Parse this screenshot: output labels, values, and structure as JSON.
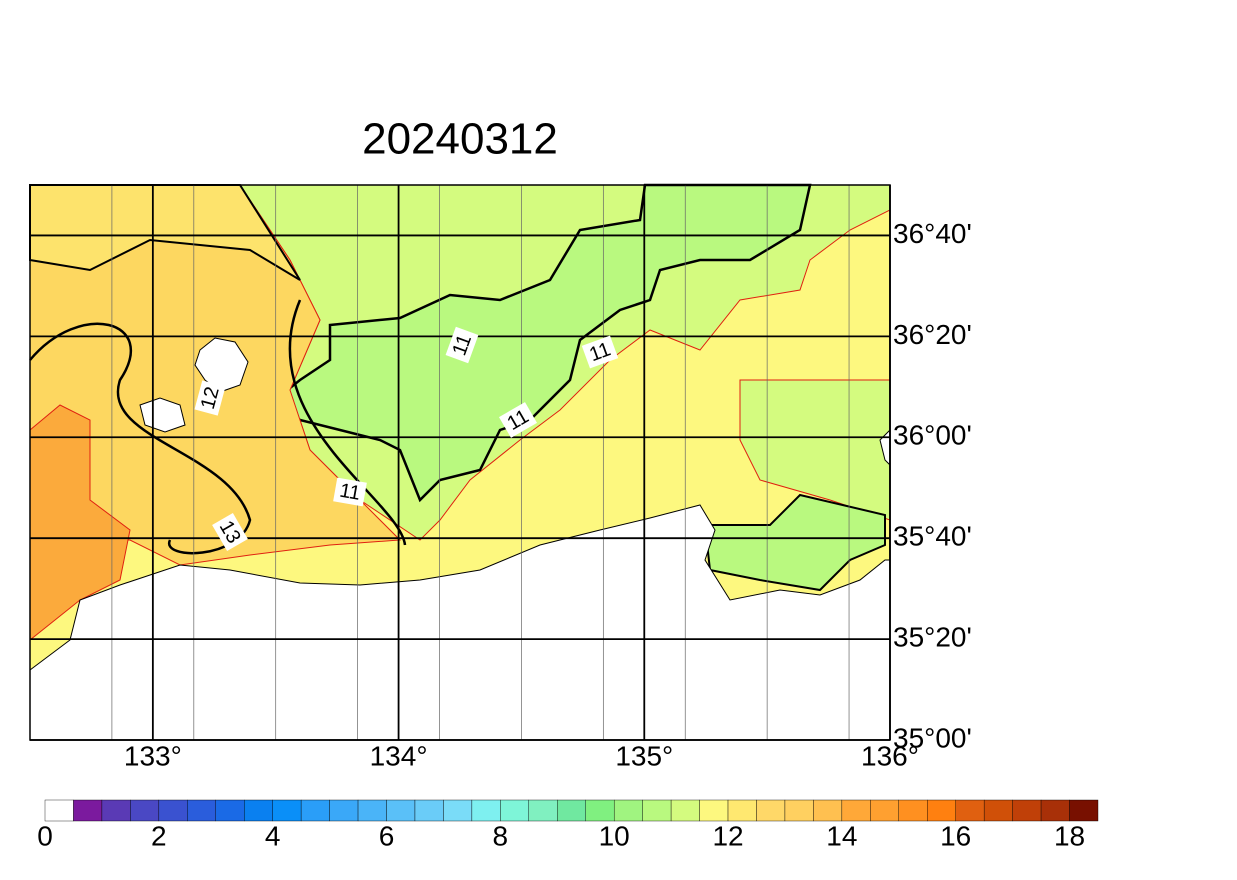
{
  "title": "20240312",
  "map": {
    "lon_range": [
      132.5,
      136
    ],
    "lat_range": [
      35,
      36.8333
    ],
    "lon_ticks": [
      {
        "value": 133,
        "label": "133°"
      },
      {
        "value": 134,
        "label": "134°"
      },
      {
        "value": 135,
        "label": "135°"
      },
      {
        "value": 136,
        "label": "136°"
      }
    ],
    "lat_ticks": [
      {
        "value": 35,
        "label": "35°00'"
      },
      {
        "value": 35.3333,
        "label": "35°20'"
      },
      {
        "value": 35.6667,
        "label": "35°40'"
      },
      {
        "value": 36,
        "label": "36°00'"
      },
      {
        "value": 36.3333,
        "label": "36°20'"
      },
      {
        "value": 36.6667,
        "label": "36°40'"
      }
    ],
    "contour_labels": [
      11,
      11,
      11,
      11,
      12,
      13
    ]
  },
  "colorbar": {
    "clim": [
      0,
      18.5
    ],
    "step": 0.5,
    "ticks": [
      0,
      2,
      4,
      6,
      8,
      10,
      12,
      14,
      16,
      18
    ],
    "colors": [
      "#ffffff",
      "#7b1a9e",
      "#5a3ab5",
      "#4a48c4",
      "#3a52d0",
      "#2a5ddc",
      "#1a6ae6",
      "#0a80f0",
      "#0a8ff8",
      "#2a9ef8",
      "#3aa8f8",
      "#4ab4f8",
      "#5ac0f8",
      "#6accf8",
      "#7adcf8",
      "#7ef0f0",
      "#7ef5d8",
      "#80f0c0",
      "#70e8a0",
      "#80f080",
      "#a0f480",
      "#b9f97f",
      "#d4fb7f",
      "#fdf87f",
      "#ffe870",
      "#ffd868",
      "#ffd060",
      "#ffc050",
      "#ffa838",
      "#ffa030",
      "#ff9020",
      "#ff8010",
      "#e06010",
      "#d05008",
      "#c04008",
      "#a83008",
      "#781000"
    ]
  }
}
